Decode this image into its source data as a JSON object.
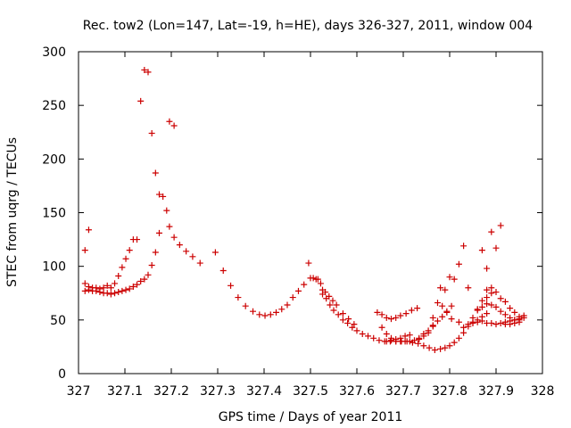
{
  "chart_data": {
    "type": "scatter",
    "title": "Rec. tow2 (Lon=147, Lat=-19, h=HE), days 326-327, 2011, window 004",
    "xlabel": "GPS time / Days of year 2011",
    "ylabel": "STEC from uqrg / TECUs",
    "xlim": [
      327,
      328
    ],
    "ylim": [
      0,
      300
    ],
    "xticks": [
      327,
      327.1,
      327.2,
      327.3,
      327.4,
      327.5,
      327.6,
      327.7,
      327.8,
      327.9,
      328
    ],
    "xtick_labels": [
      "327",
      "327.1",
      "327.2",
      "327.3",
      "327.4",
      "327.5",
      "327.6",
      "327.7",
      "327.8",
      "327.9",
      "328"
    ],
    "yticks": [
      0,
      50,
      100,
      150,
      200,
      250,
      300
    ],
    "ytick_labels": [
      "0",
      "50",
      "100",
      "150",
      "200",
      "250",
      "300"
    ],
    "grid": false,
    "marker": "+",
    "color": "#cc0000",
    "points": [
      [
        327.014,
        115
      ],
      [
        327.022,
        134
      ],
      [
        327.014,
        84
      ],
      [
        327.022,
        81
      ],
      [
        327.03,
        80
      ],
      [
        327.038,
        80
      ],
      [
        327.046,
        79
      ],
      [
        327.054,
        80
      ],
      [
        327.062,
        82
      ],
      [
        327.014,
        77
      ],
      [
        327.022,
        78
      ],
      [
        327.03,
        77
      ],
      [
        327.038,
        77
      ],
      [
        327.046,
        76
      ],
      [
        327.054,
        75
      ],
      [
        327.062,
        75
      ],
      [
        327.07,
        74
      ],
      [
        327.078,
        75
      ],
      [
        327.086,
        76
      ],
      [
        327.094,
        77
      ],
      [
        327.102,
        78
      ],
      [
        327.11,
        79
      ],
      [
        327.118,
        81
      ],
      [
        327.126,
        83
      ],
      [
        327.134,
        86
      ],
      [
        327.142,
        88
      ],
      [
        327.07,
        80
      ],
      [
        327.078,
        84
      ],
      [
        327.086,
        91
      ],
      [
        327.094,
        99
      ],
      [
        327.102,
        107
      ],
      [
        327.11,
        115
      ],
      [
        327.118,
        125
      ],
      [
        327.126,
        125
      ],
      [
        327.134,
        254
      ],
      [
        327.142,
        283
      ],
      [
        327.15,
        281
      ],
      [
        327.158,
        224
      ],
      [
        327.166,
        187
      ],
      [
        327.174,
        167
      ],
      [
        327.182,
        165
      ],
      [
        327.19,
        152
      ],
      [
        327.15,
        92
      ],
      [
        327.158,
        101
      ],
      [
        327.166,
        113
      ],
      [
        327.174,
        131
      ],
      [
        327.196,
        137
      ],
      [
        327.206,
        127
      ],
      [
        327.218,
        120
      ],
      [
        327.232,
        114
      ],
      [
        327.246,
        109
      ],
      [
        327.262,
        103
      ],
      [
        327.196,
        235
      ],
      [
        327.206,
        231
      ],
      [
        327.295,
        113
      ],
      [
        327.312,
        96
      ],
      [
        327.328,
        82
      ],
      [
        327.344,
        71
      ],
      [
        327.36,
        63
      ],
      [
        327.376,
        58
      ],
      [
        327.39,
        55
      ],
      [
        327.402,
        54
      ],
      [
        327.414,
        55
      ],
      [
        327.426,
        57
      ],
      [
        327.438,
        60
      ],
      [
        327.45,
        64
      ],
      [
        327.462,
        71
      ],
      [
        327.474,
        77
      ],
      [
        327.486,
        83
      ],
      [
        327.5,
        89
      ],
      [
        327.512,
        88
      ],
      [
        327.522,
        84
      ],
      [
        327.496,
        103
      ],
      [
        327.506,
        89
      ],
      [
        327.516,
        88
      ],
      [
        327.526,
        78
      ],
      [
        327.532,
        76
      ],
      [
        327.54,
        72
      ],
      [
        327.548,
        68
      ],
      [
        327.556,
        64
      ],
      [
        327.526,
        74
      ],
      [
        327.534,
        70
      ],
      [
        327.542,
        64
      ],
      [
        327.55,
        59
      ],
      [
        327.56,
        55
      ],
      [
        327.57,
        50
      ],
      [
        327.58,
        47
      ],
      [
        327.59,
        43
      ],
      [
        327.6,
        40
      ],
      [
        327.612,
        37
      ],
      [
        327.624,
        35
      ],
      [
        327.636,
        33
      ],
      [
        327.648,
        31
      ],
      [
        327.66,
        30
      ],
      [
        327.672,
        30
      ],
      [
        327.684,
        30
      ],
      [
        327.696,
        30
      ],
      [
        327.708,
        30
      ],
      [
        327.72,
        29
      ],
      [
        327.732,
        28
      ],
      [
        327.744,
        26
      ],
      [
        327.756,
        24
      ],
      [
        327.768,
        22
      ],
      [
        327.78,
        23
      ],
      [
        327.79,
        24
      ],
      [
        327.8,
        26
      ],
      [
        327.81,
        29
      ],
      [
        327.82,
        33
      ],
      [
        327.83,
        38
      ],
      [
        327.84,
        44
      ],
      [
        327.85,
        52
      ],
      [
        327.86,
        60
      ],
      [
        327.87,
        68
      ],
      [
        327.88,
        78
      ],
      [
        327.89,
        80
      ],
      [
        327.57,
        56
      ],
      [
        327.582,
        51
      ],
      [
        327.594,
        46
      ],
      [
        327.644,
        57
      ],
      [
        327.654,
        55
      ],
      [
        327.664,
        52
      ],
      [
        327.674,
        51
      ],
      [
        327.684,
        52
      ],
      [
        327.694,
        54
      ],
      [
        327.706,
        56
      ],
      [
        327.718,
        59
      ],
      [
        327.73,
        61
      ],
      [
        327.654,
        43
      ],
      [
        327.664,
        37
      ],
      [
        327.674,
        33
      ],
      [
        327.684,
        30
      ],
      [
        327.694,
        30
      ],
      [
        327.704,
        30
      ],
      [
        327.714,
        30
      ],
      [
        327.724,
        31
      ],
      [
        327.734,
        33
      ],
      [
        327.744,
        37
      ],
      [
        327.754,
        40
      ],
      [
        327.764,
        45
      ],
      [
        327.774,
        49
      ],
      [
        327.784,
        53
      ],
      [
        327.794,
        57
      ],
      [
        327.804,
        63
      ],
      [
        327.664,
        30
      ],
      [
        327.674,
        31
      ],
      [
        327.684,
        32
      ],
      [
        327.694,
        33
      ],
      [
        327.704,
        35
      ],
      [
        327.714,
        36
      ],
      [
        327.734,
        32
      ],
      [
        327.744,
        35
      ],
      [
        327.754,
        38
      ],
      [
        327.764,
        44
      ],
      [
        327.764,
        52
      ],
      [
        327.774,
        66
      ],
      [
        327.784,
        63
      ],
      [
        327.794,
        58
      ],
      [
        327.804,
        51
      ],
      [
        327.78,
        80
      ],
      [
        327.79,
        78
      ],
      [
        327.82,
        48
      ],
      [
        327.83,
        43
      ],
      [
        327.84,
        46
      ],
      [
        327.85,
        48
      ],
      [
        327.86,
        50
      ],
      [
        327.87,
        53
      ],
      [
        327.88,
        56
      ],
      [
        327.8,
        90
      ],
      [
        327.81,
        88
      ],
      [
        327.82,
        102
      ],
      [
        327.83,
        119
      ],
      [
        327.84,
        80
      ],
      [
        327.87,
        115
      ],
      [
        327.88,
        98
      ],
      [
        327.89,
        132
      ],
      [
        327.9,
        117
      ],
      [
        327.91,
        138
      ],
      [
        327.85,
        47
      ],
      [
        327.86,
        48
      ],
      [
        327.87,
        49
      ],
      [
        327.88,
        47
      ],
      [
        327.89,
        47
      ],
      [
        327.9,
        46
      ],
      [
        327.91,
        47
      ],
      [
        327.92,
        48
      ],
      [
        327.93,
        49
      ],
      [
        327.94,
        50
      ],
      [
        327.95,
        51
      ],
      [
        327.96,
        52
      ],
      [
        327.86,
        59
      ],
      [
        327.87,
        62
      ],
      [
        327.88,
        65
      ],
      [
        327.89,
        64
      ],
      [
        327.9,
        62
      ],
      [
        327.91,
        58
      ],
      [
        327.92,
        55
      ],
      [
        327.93,
        52
      ],
      [
        327.94,
        50
      ],
      [
        327.95,
        48
      ],
      [
        327.88,
        71
      ],
      [
        327.89,
        75
      ],
      [
        327.9,
        76
      ],
      [
        327.91,
        70
      ],
      [
        327.92,
        67
      ],
      [
        327.93,
        61
      ],
      [
        327.94,
        57
      ],
      [
        327.95,
        53
      ],
      [
        327.92,
        46
      ],
      [
        327.93,
        46
      ],
      [
        327.94,
        47
      ],
      [
        327.95,
        50
      ],
      [
        327.96,
        54
      ]
    ]
  }
}
